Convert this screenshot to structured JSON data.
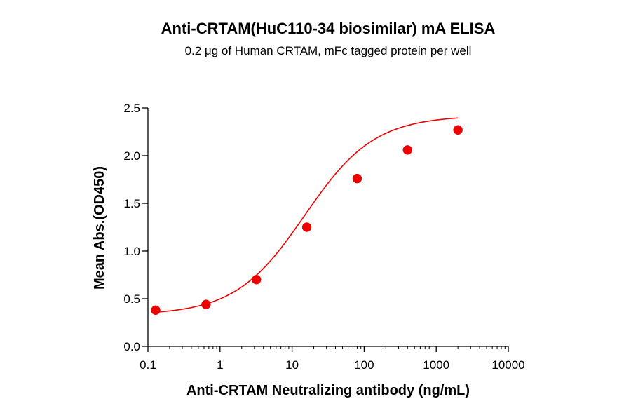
{
  "chart_data": {
    "type": "scatter",
    "title": "Anti-CRTAM(HuC110-34 biosimilar) mA ELISA",
    "subtitle": "0.2 μg of Human CRTAM, mFc tagged protein per well",
    "xlabel": "Anti-CRTAM Neutralizing antibody (ng/mL)",
    "ylabel": "Mean Abs.(OD450)",
    "x_scale": "log",
    "xlim": [
      0.1,
      10000
    ],
    "ylim": [
      0.0,
      2.5
    ],
    "x_ticks": [
      0.1,
      1,
      10,
      100,
      1000,
      10000
    ],
    "x_tick_labels": [
      "0.1",
      "1",
      "10",
      "100",
      "1000",
      "10000"
    ],
    "y_ticks": [
      0.0,
      0.5,
      1.0,
      1.5,
      2.0,
      2.5
    ],
    "y_tick_labels": [
      "0.0",
      "0.5",
      "1.0",
      "1.5",
      "2.0",
      "2.5"
    ],
    "grid": false,
    "legend": "none",
    "series": [
      {
        "x": [
          0.128,
          0.64,
          3.2,
          16,
          80,
          400,
          2000
        ],
        "y": [
          0.38,
          0.44,
          0.7,
          1.25,
          1.76,
          2.06,
          2.27
        ],
        "color": "#ee0000",
        "marker": "circle",
        "fit": "4PL sigmoid"
      }
    ]
  }
}
